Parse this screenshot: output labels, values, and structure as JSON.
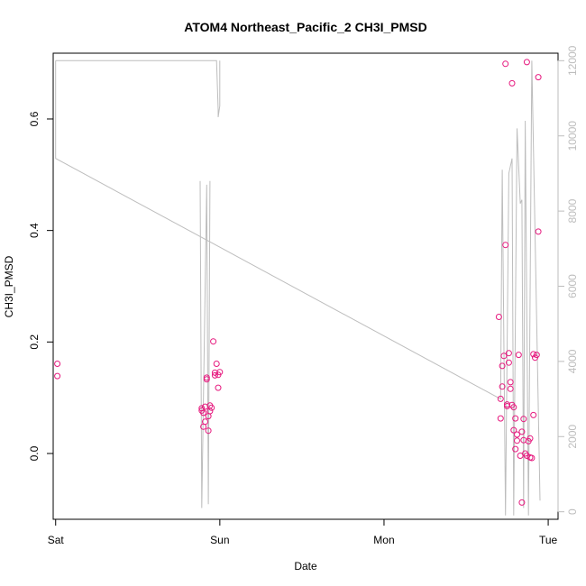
{
  "chart_data": {
    "type": "scatter",
    "title": "ATOM4 Northeast_Pacific_2 CH3I_PMSD",
    "xlabel": "Date",
    "ylabel": "CH3I_PMSD",
    "x_ticks": [
      "Sat",
      "Sun",
      "Mon",
      "Tue"
    ],
    "xlim": [
      -0.015,
      3.06
    ],
    "ylim": [
      -0.118,
      0.718
    ],
    "y_ticks": [
      0.0,
      0.2,
      0.4,
      0.6
    ],
    "y_tick_labels": [
      "0.0",
      "0.2",
      "0.4",
      "0.6"
    ],
    "y2lim": [
      -200,
      12200
    ],
    "y2_ticks": [
      0,
      2000,
      4000,
      6000,
      8000,
      10000,
      12000
    ],
    "y2_tick_labels": [
      "0",
      "2000",
      "4000",
      "6000",
      "8000",
      "10000",
      "12000"
    ],
    "grid": false,
    "colors": {
      "points": "#e6197e",
      "line": "#bdbdbd",
      "axis": "#000000",
      "right_axis": "#bdbdbd"
    },
    "series": [
      {
        "style": "points",
        "color": "#e6197e",
        "points": [
          [
            0.01,
            0.161
          ],
          [
            0.01,
            0.139
          ],
          [
            0.89,
            0.081
          ],
          [
            0.89,
            0.077
          ],
          [
            0.9,
            0.073
          ],
          [
            0.9,
            0.048
          ],
          [
            0.91,
            0.084
          ],
          [
            0.91,
            0.057
          ],
          [
            0.92,
            0.136
          ],
          [
            0.92,
            0.133
          ],
          [
            0.93,
            0.067
          ],
          [
            0.93,
            0.041
          ],
          [
            0.94,
            0.086
          ],
          [
            0.94,
            0.076
          ],
          [
            0.95,
            0.082
          ],
          [
            0.96,
            0.201
          ],
          [
            0.97,
            0.14
          ],
          [
            0.97,
            0.145
          ],
          [
            0.98,
            0.161
          ],
          [
            0.99,
            0.141
          ],
          [
            0.99,
            0.118
          ],
          [
            1.0,
            0.146
          ],
          [
            2.7,
            0.245
          ],
          [
            2.71,
            0.063
          ],
          [
            2.71,
            0.098
          ],
          [
            2.72,
            0.12
          ],
          [
            2.72,
            0.157
          ],
          [
            2.73,
            0.175
          ],
          [
            2.74,
            0.699
          ],
          [
            2.74,
            0.374
          ],
          [
            2.75,
            0.088
          ],
          [
            2.75,
            0.085
          ],
          [
            2.76,
            0.163
          ],
          [
            2.76,
            0.18
          ],
          [
            2.77,
            0.128
          ],
          [
            2.77,
            0.116
          ],
          [
            2.78,
            0.664
          ],
          [
            2.78,
            0.087
          ],
          [
            2.79,
            0.042
          ],
          [
            2.79,
            0.083
          ],
          [
            2.8,
            0.008
          ],
          [
            2.8,
            0.063
          ],
          [
            2.81,
            0.034
          ],
          [
            2.81,
            0.023
          ],
          [
            2.82,
            0.177
          ],
          [
            2.83,
            -0.004
          ],
          [
            2.84,
            0.039
          ],
          [
            2.84,
            -0.088
          ],
          [
            2.85,
            0.062
          ],
          [
            2.85,
            0.024
          ],
          [
            2.86,
            0.0
          ],
          [
            2.87,
            0.702
          ],
          [
            2.87,
            -0.004
          ],
          [
            2.88,
            0.022
          ],
          [
            2.89,
            -0.007
          ],
          [
            2.89,
            0.027
          ],
          [
            2.9,
            -0.008
          ],
          [
            2.91,
            0.178
          ],
          [
            2.91,
            0.069
          ],
          [
            2.92,
            0.172
          ],
          [
            2.93,
            0.177
          ],
          [
            2.94,
            0.398
          ],
          [
            2.94,
            0.675
          ]
        ]
      },
      {
        "style": "line",
        "axis": "right",
        "color": "#bdbdbd",
        "points": [
          [
            0.0,
            12000
          ],
          [
            0.0,
            9400
          ],
          [
            2.71,
            3000
          ],
          [
            2.72,
            9100
          ],
          [
            2.74,
            -100
          ],
          [
            2.76,
            9000
          ],
          [
            2.78,
            9400
          ],
          [
            2.79,
            -100
          ],
          [
            2.81,
            10200
          ],
          [
            2.83,
            8200
          ],
          [
            2.84,
            8300
          ],
          [
            2.85,
            100
          ],
          [
            2.86,
            10400
          ],
          [
            2.88,
            -100
          ],
          [
            2.9,
            12000
          ],
          [
            2.95,
            300
          ]
        ]
      },
      {
        "style": "line",
        "axis": "right",
        "color": "#bdbdbd",
        "points": [
          [
            0.0,
            12000
          ],
          [
            0.98,
            12000
          ],
          [
            0.99,
            10700
          ],
          [
            0.99,
            10500
          ],
          [
            1.0,
            10800
          ],
          [
            1.0,
            12000
          ]
        ]
      },
      {
        "style": "line",
        "axis": "right",
        "color": "#bdbdbd",
        "points": [
          [
            0.88,
            8800
          ],
          [
            0.89,
            100
          ],
          [
            0.92,
            8700
          ],
          [
            0.93,
            200
          ],
          [
            0.94,
            8800
          ]
        ]
      }
    ]
  }
}
